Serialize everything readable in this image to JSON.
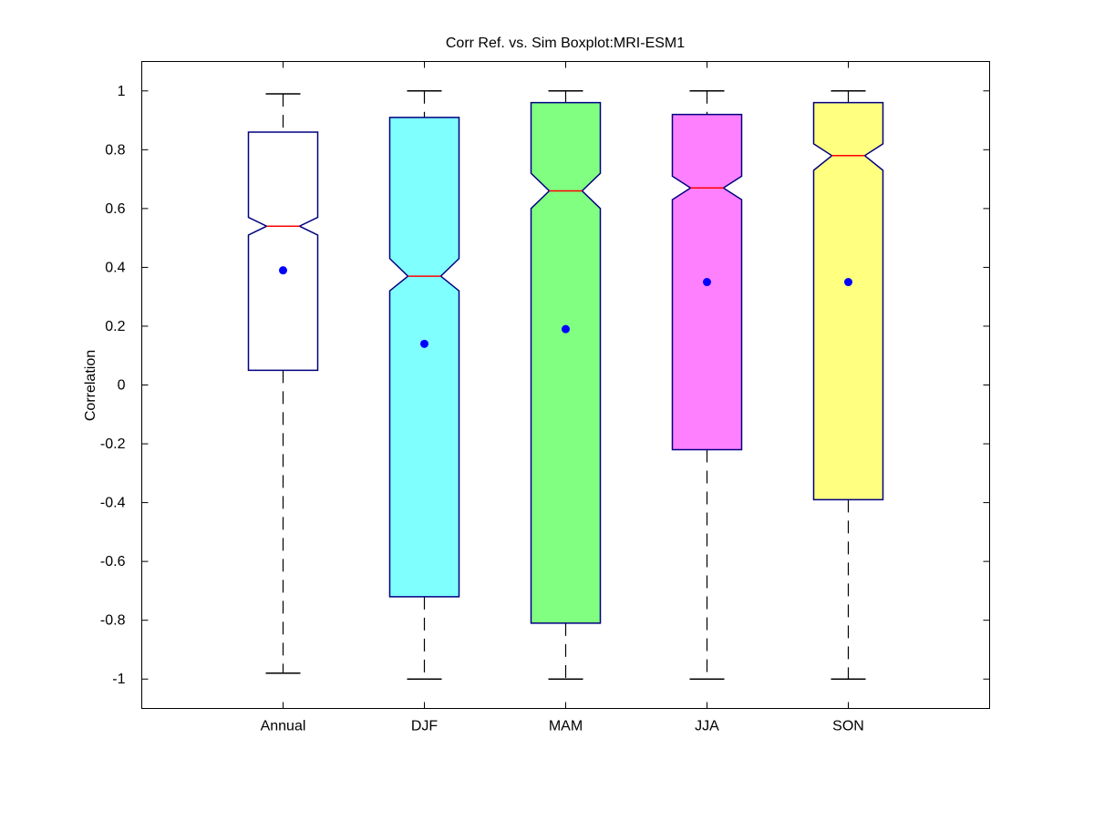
{
  "chart_data": {
    "type": "boxplot",
    "title": "Corr Ref. vs. Sim Boxplot:MRI-ESM1",
    "xlabel": "",
    "ylabel": "Correlation",
    "ylim": [
      -1.1,
      1.1
    ],
    "yticks": [
      "-1",
      "-0.8",
      "-0.6",
      "-0.4",
      "-0.2",
      "0",
      "0.2",
      "0.4",
      "0.6",
      "0.8",
      "1"
    ],
    "ytick_values": [
      -1,
      -0.8,
      -0.6,
      -0.4,
      -0.2,
      0,
      0.2,
      0.4,
      0.6,
      0.8,
      1
    ],
    "grid": false,
    "notched": true,
    "median_color": "#ff0000",
    "mean_color": "#0000ff",
    "edge_color": "#000080",
    "categories": [
      "Annual",
      "DJF",
      "MAM",
      "JJA",
      "SON"
    ],
    "boxes": [
      {
        "category": "Annual",
        "whisker_low": -0.98,
        "q1": 0.05,
        "median": 0.54,
        "q3": 0.86,
        "whisker_high": 0.99,
        "notch_low": 0.51,
        "notch_high": 0.57,
        "mean": 0.39,
        "color": "#ffffff"
      },
      {
        "category": "DJF",
        "whisker_low": -1.0,
        "q1": -0.72,
        "median": 0.37,
        "q3": 0.91,
        "whisker_high": 1.0,
        "notch_low": 0.32,
        "notch_high": 0.43,
        "mean": 0.14,
        "color": "#80ffff"
      },
      {
        "category": "MAM",
        "whisker_low": -1.0,
        "q1": -0.81,
        "median": 0.66,
        "q3": 0.96,
        "whisker_high": 1.0,
        "notch_low": 0.6,
        "notch_high": 0.72,
        "mean": 0.19,
        "color": "#80ff80"
      },
      {
        "category": "JJA",
        "whisker_low": -1.0,
        "q1": -0.22,
        "median": 0.67,
        "q3": 0.92,
        "whisker_high": 1.0,
        "notch_low": 0.63,
        "notch_high": 0.71,
        "mean": 0.35,
        "color": "#ff80ff"
      },
      {
        "category": "SON",
        "whisker_low": -1.0,
        "q1": -0.39,
        "median": 0.78,
        "q3": 0.96,
        "whisker_high": 1.0,
        "notch_low": 0.73,
        "notch_high": 0.82,
        "mean": 0.35,
        "color": "#ffff80"
      }
    ]
  }
}
